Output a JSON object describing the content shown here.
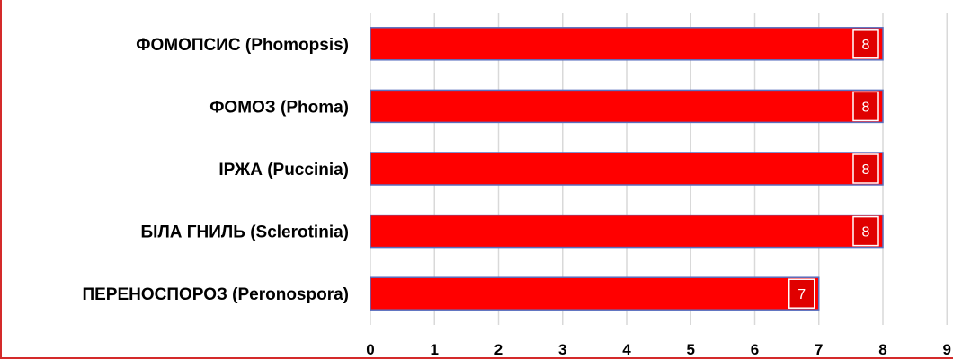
{
  "chart_data": {
    "type": "bar",
    "orientation": "horizontal",
    "categories": [
      "ФОМОПСИС (Phomopsis)",
      "ФОМОЗ (Phoma)",
      "ІРЖА (Puccinia)",
      "БІЛА ГНИЛЬ (Sclerotinia)",
      "ПЕРЕНОСПОРОЗ (Peronospora)"
    ],
    "values": [
      8,
      8,
      8,
      8,
      7
    ],
    "xlim": [
      0,
      9
    ],
    "xticks": [
      "0",
      "1",
      "2",
      "3",
      "4",
      "5",
      "6",
      "7",
      "8",
      "9"
    ],
    "title": "",
    "xlabel": "",
    "ylabel": "",
    "grid": true,
    "data_labels": true,
    "colors": {
      "bar": "#ff0000",
      "bar_border": "#5a6fbf",
      "label_box": "#e00000",
      "gridline": "#d9d9d9",
      "frame": "#d42a2a"
    }
  }
}
